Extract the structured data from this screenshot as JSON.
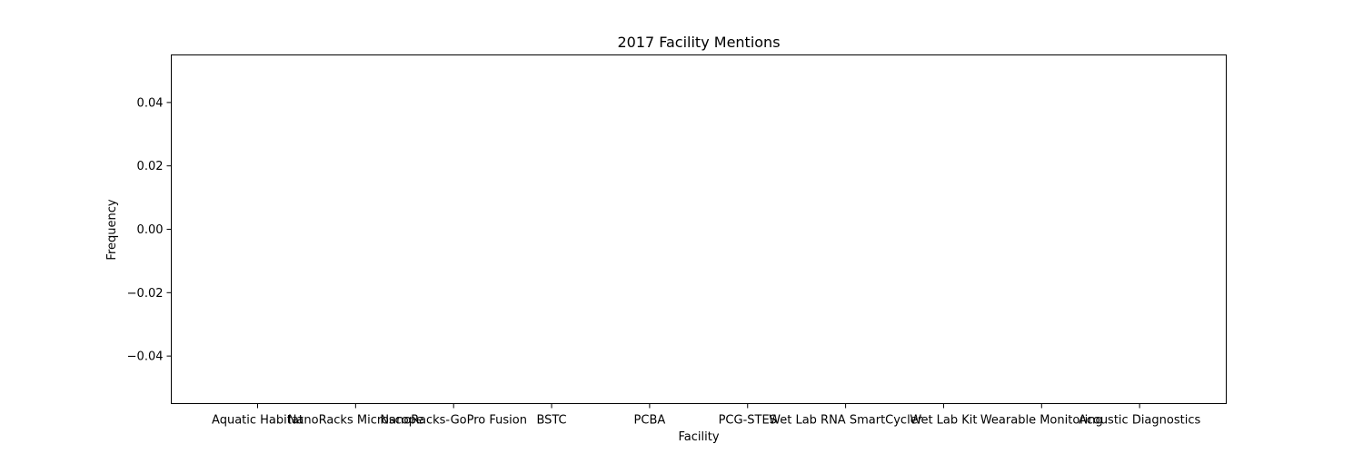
{
  "chart_data": {
    "type": "bar",
    "title": "2017 Facility Mentions",
    "xlabel": "Facility",
    "ylabel": "Frequency",
    "categories": [
      "Aquatic Habitat",
      "NanoRacks Microscope",
      "NanoRacks-GoPro Fusion",
      "BSTC",
      "PCBA",
      "PCG-STES",
      "Wet Lab RNA SmartCycler",
      "Wet Lab Kit",
      "Wearable Monitoring",
      "Acoustic Diagnostics"
    ],
    "values": [
      0,
      0,
      0,
      0,
      0,
      0,
      0,
      0,
      0,
      0
    ],
    "ylim": [
      -0.055,
      0.055
    ],
    "yticks": [
      -0.04,
      -0.02,
      0.0,
      0.02,
      0.04
    ],
    "ytick_labels": [
      "−0.04",
      "−0.02",
      "0.00",
      "0.02",
      "0.04"
    ],
    "grid": false,
    "legend": "none",
    "colors": {
      "axes": "#000000",
      "bar": "#1f77b4",
      "background": "#ffffff"
    }
  }
}
